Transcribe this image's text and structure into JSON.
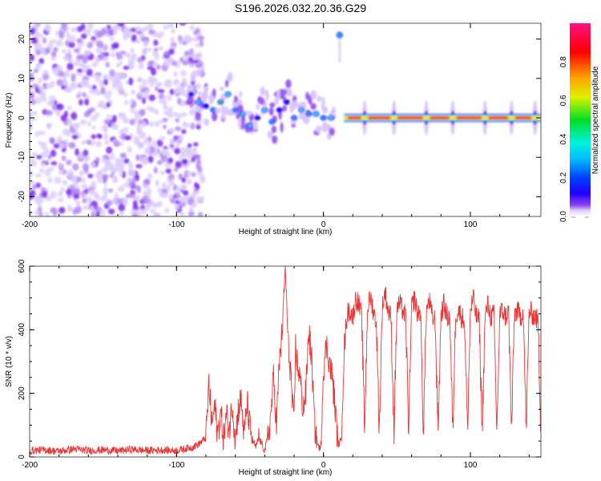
{
  "title": "S196.2026.032.20.36.G29",
  "chart_data": [
    {
      "type": "heatmap",
      "name": "spectrogram",
      "title": "S196.2026.032.20.36.G29",
      "xlabel": "Height of straight line (km)",
      "ylabel": "Frequency (Hz)",
      "xlim": [
        -200,
        148
      ],
      "ylim": [
        -25,
        24
      ],
      "xticks": [
        -200,
        -100,
        0,
        100
      ],
      "xtick_labels": [
        "-200",
        "-100",
        "0",
        "100"
      ],
      "yticks": [
        -20,
        -10,
        0,
        10,
        20
      ],
      "ytick_labels": [
        "-20",
        "-10",
        "0",
        "10",
        "20"
      ],
      "colorbar": {
        "label": "Normalized spectral amplitude",
        "range": [
          0.0,
          1.0
        ],
        "ticks": [
          0.0,
          0.2,
          0.4,
          0.6,
          0.8
        ],
        "tick_labels": [
          "0.0",
          "0.2",
          "0.4",
          "0.6",
          "0.8"
        ],
        "colormap": [
          "#ffffff",
          "#e6d6fb",
          "#9a5cf0",
          "#6a00f0",
          "#0010ff",
          "#00aaff",
          "#00f0f0",
          "#00e020",
          "#f0f000",
          "#ff8000",
          "#ff0000",
          "#ff1080"
        ]
      },
      "features": [
        {
          "desc": "broadband noise field",
          "x_range": [
            -200,
            -90
          ],
          "y_range": [
            -25,
            24
          ],
          "amplitude": 0.1
        },
        {
          "desc": "scattered signal drifting to 0 Hz",
          "points": [
            [
              -90,
              6
            ],
            [
              -85,
              4
            ],
            [
              -80,
              3
            ],
            [
              -75,
              2
            ],
            [
              -70,
              4
            ],
            [
              -65,
              6
            ],
            [
              -60,
              2
            ],
            [
              -55,
              1
            ],
            [
              -50,
              -2
            ],
            [
              -45,
              0
            ],
            [
              -40,
              2
            ],
            [
              -35,
              -1
            ],
            [
              -30,
              2
            ],
            [
              -25,
              4
            ],
            [
              -20,
              0
            ],
            [
              -15,
              2
            ],
            [
              -10,
              1
            ],
            [
              -5,
              1
            ],
            [
              0,
              0
            ],
            [
              5,
              0
            ]
          ],
          "amplitude": 0.4
        },
        {
          "desc": "isolated spot",
          "x": 11,
          "y": 21,
          "amplitude": 0.45
        },
        {
          "desc": "steady carrier at 0 Hz",
          "x_range": [
            14,
            148
          ],
          "y": 0,
          "amplitude": 0.95,
          "gaps_at": [
            28,
            48,
            70,
            88,
            110,
            128,
            144
          ]
        }
      ]
    },
    {
      "type": "line",
      "name": "snr",
      "xlabel": "Height of straight line (km)",
      "ylabel": "SNR (10 * v/v)",
      "xlim": [
        -200,
        148
      ],
      "ylim": [
        0,
        600
      ],
      "xticks": [
        -200,
        -100,
        0,
        100
      ],
      "xtick_labels": [
        "-200",
        "-100",
        "0",
        "100"
      ],
      "yticks": [
        0,
        200,
        400,
        600
      ],
      "ytick_labels": [
        "0",
        "200",
        "400",
        "600"
      ],
      "color": "#ee3333",
      "series": [
        {
          "name": "SNR",
          "x": [
            -200,
            -190,
            -180,
            -170,
            -160,
            -150,
            -140,
            -130,
            -120,
            -110,
            -100,
            -95,
            -90,
            -85,
            -80,
            -78,
            -76,
            -74,
            -72,
            -70,
            -68,
            -66,
            -64,
            -62,
            -60,
            -58,
            -56,
            -54,
            -52,
            -50,
            -48,
            -46,
            -44,
            -42,
            -40,
            -38,
            -36,
            -34,
            -32,
            -30,
            -28,
            -26,
            -24,
            -22,
            -21,
            -20,
            -19,
            -18,
            -16,
            -14,
            -12,
            -10,
            -8,
            -6,
            -4,
            -2,
            0,
            2,
            4,
            6,
            8,
            10,
            12,
            14,
            16,
            18,
            20,
            22,
            24,
            26,
            28,
            30,
            32,
            34,
            36,
            38,
            40,
            42,
            44,
            46,
            48,
            50,
            52,
            54,
            56,
            58,
            60,
            62,
            64,
            66,
            68,
            70,
            72,
            74,
            76,
            78,
            80,
            82,
            84,
            86,
            88,
            90,
            92,
            94,
            96,
            98,
            100,
            102,
            104,
            106,
            108,
            110,
            112,
            114,
            116,
            118,
            120,
            122,
            124,
            126,
            128,
            130,
            132,
            134,
            136,
            138,
            140,
            142,
            144,
            146,
            148
          ],
          "values": [
            20,
            22,
            18,
            25,
            20,
            22,
            19,
            24,
            20,
            22,
            20,
            25,
            30,
            40,
            60,
            230,
            100,
            160,
            70,
            140,
            60,
            130,
            90,
            170,
            50,
            150,
            180,
            60,
            170,
            90,
            50,
            30,
            60,
            40,
            20,
            60,
            120,
            250,
            100,
            300,
            400,
            600,
            350,
            250,
            150,
            100,
            350,
            300,
            250,
            150,
            200,
            400,
            300,
            100,
            40,
            20,
            280,
            350,
            300,
            250,
            150,
            40,
            50,
            330,
            450,
            460,
            440,
            500,
            480,
            440,
            90,
            470,
            500,
            460,
            420,
            80,
            470,
            520,
            460,
            440,
            80,
            470,
            480,
            460,
            440,
            80,
            470,
            500,
            450,
            460,
            80,
            460,
            490,
            440,
            430,
            80,
            450,
            480,
            440,
            440,
            80,
            450,
            460,
            440,
            430,
            80,
            460,
            500,
            440,
            430,
            80,
            440,
            480,
            440,
            450,
            80,
            450,
            460,
            440,
            460,
            80,
            450,
            460,
            440,
            460,
            80,
            460,
            450,
            440,
            430,
            80
          ]
        }
      ]
    }
  ]
}
